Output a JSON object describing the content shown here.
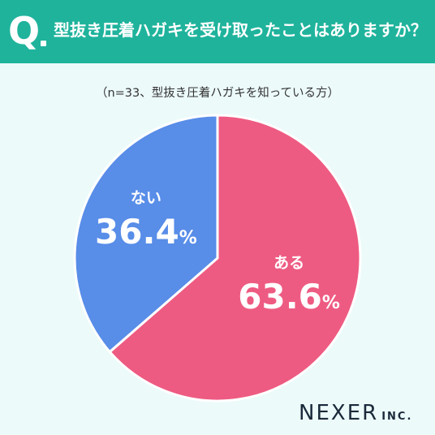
{
  "header": {
    "q_mark": "Q",
    "question": "型抜き圧着ハガキを受け取ったことはありますか？"
  },
  "subtitle": "（n=33、型抜き圧着ハガキを知っている方）",
  "chart_data": {
    "type": "pie",
    "title": "型抜き圧着ハガキを受け取ったことはありますか？",
    "subtitle": "（n=33、型抜き圧着ハガキを知っている方）",
    "slices": [
      {
        "label": "ある",
        "value": 63.6,
        "display": "63.6",
        "unit": "%",
        "color": "#ee5b82"
      },
      {
        "label": "ない",
        "value": 36.4,
        "display": "36.4",
        "unit": "%",
        "color": "#588de8"
      }
    ],
    "start_angle": "12 o'clock",
    "direction": "clockwise"
  },
  "brand": {
    "name": "NEXER",
    "suffix": "INC."
  }
}
